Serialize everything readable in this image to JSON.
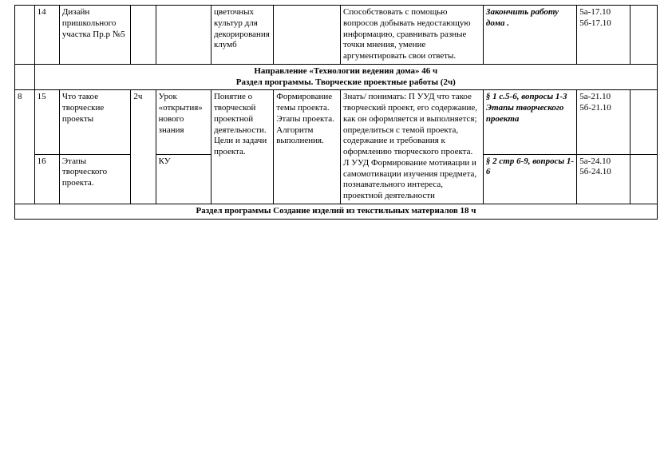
{
  "row1": {
    "num": "14",
    "topic": "Дизайн пришкольного участка Пр.р №5",
    "content": "цветочных культур для декорирования клумб",
    "competence": "Способствовать с помощью вопросов добывать недостающую информацию, сравнивать разные точки мнения, умение аргументировать свои ответы.",
    "homework_bold": "Закончить работу дома .",
    "dates": "5а-17.10 5б-17.10"
  },
  "section1_line1": "Направление «Технологии ведения дома»  46 ч",
  "section1_line2": "Раздел программы. Творческие проектные работы (2ч)",
  "row2": {
    "group": "8",
    "num": "15",
    "topic": "Что такое творческие проекты",
    "hours": "2ч",
    "lessonType": "Урок «открытия» нового знания",
    "content": "Понятие о творческой проектной деятельности. Цели и задачи проекта.",
    "form": "Формирование темы проекта. Этапы проекта. Алгоритм выполнения.",
    "competence": "Знать/ понимать: П УУД что такое творческий проект, его содержание, как он оформляется и выполняется; определиться с темой проекта, содержание и требования к оформлению творческого проекта. Л УУД  Формирование мотивации и самомотивации изучения предмета, познавательного интереса, проектной деятельности",
    "homework_italic": "§ 1 с.5-6, вопросы 1-3 Этапы творческого проекта",
    "dates": "5а-21.10 5б-21.10"
  },
  "row3": {
    "num": "16",
    "topic": "Этапы творческого проекта.",
    "lessonType": "КУ",
    "homework_italic": " § 2 стр 6-9, вопросы 1-6",
    "dates": "5а-24.10 5б-24.10"
  },
  "section2": "Раздел программы Создание изделий из текстильных материалов 18 ч"
}
